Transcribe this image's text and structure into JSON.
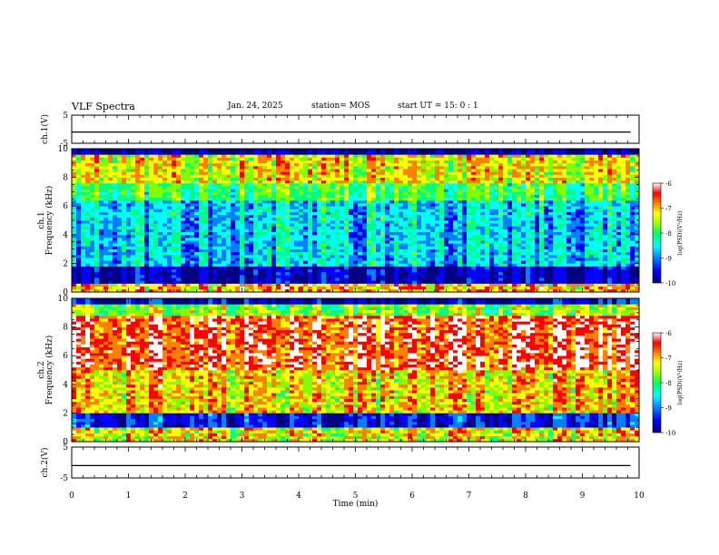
{
  "header": {
    "title": "VLF Spectra",
    "date": "Jan. 24, 2025",
    "station": "station= MOS",
    "start_ut": "start UT =  15: 0  : 1"
  },
  "chart_data": [
    {
      "type": "line",
      "panel": "ch1-waveform",
      "ylabel": "ch.1(V)",
      "ylim": [
        -5,
        5
      ],
      "y_ticks": [
        "5",
        "-5"
      ],
      "x": [
        0,
        9.85
      ],
      "values": [
        -1,
        -1
      ]
    },
    {
      "type": "heatmap",
      "panel": "ch1-spectrogram",
      "title": "ch.1",
      "ylabel": "Frequency (kHz)",
      "ylim": [
        0,
        10
      ],
      "y_ticks": [
        "0",
        "2",
        "4",
        "6",
        "8",
        "10"
      ],
      "xlim": [
        0,
        10
      ],
      "colorbar": {
        "label": "log(PSD)(V²/Hz)",
        "range": [
          -10,
          -6
        ],
        "ticks": [
          "-6",
          "-7",
          "-8",
          "-9",
          "-10"
        ]
      }
    },
    {
      "type": "heatmap",
      "panel": "ch2-spectrogram",
      "title": "ch.2",
      "ylabel": "Frequency (kHz)",
      "ylim": [
        0,
        10
      ],
      "y_ticks": [
        "0",
        "2",
        "4",
        "6",
        "8",
        "10"
      ],
      "xlim": [
        0,
        10
      ],
      "colorbar": {
        "label": "log(PSD)(V²/Hz)",
        "range": [
          -10,
          -6
        ],
        "ticks": [
          "-6",
          "-7",
          "-8",
          "-9",
          "-10"
        ]
      }
    },
    {
      "type": "line",
      "panel": "ch2-waveform",
      "ylabel": "ch.2(V)",
      "ylim": [
        -5,
        5
      ],
      "y_ticks": [
        "5",
        "-5"
      ],
      "x": [
        0,
        9.85
      ],
      "values": [
        -1,
        -1
      ]
    }
  ],
  "x_axis": {
    "label": "Time (min)",
    "range": [
      0,
      10
    ],
    "ticks": [
      "0",
      "1",
      "2",
      "3",
      "4",
      "5",
      "6",
      "7",
      "8",
      "9",
      "10"
    ]
  },
  "colors": {
    "colormap": [
      "#000080",
      "#0000ff",
      "#0080ff",
      "#00ffff",
      "#00ff80",
      "#80ff00",
      "#ffff00",
      "#ff8000",
      "#ff0000",
      "#ffffff"
    ]
  }
}
